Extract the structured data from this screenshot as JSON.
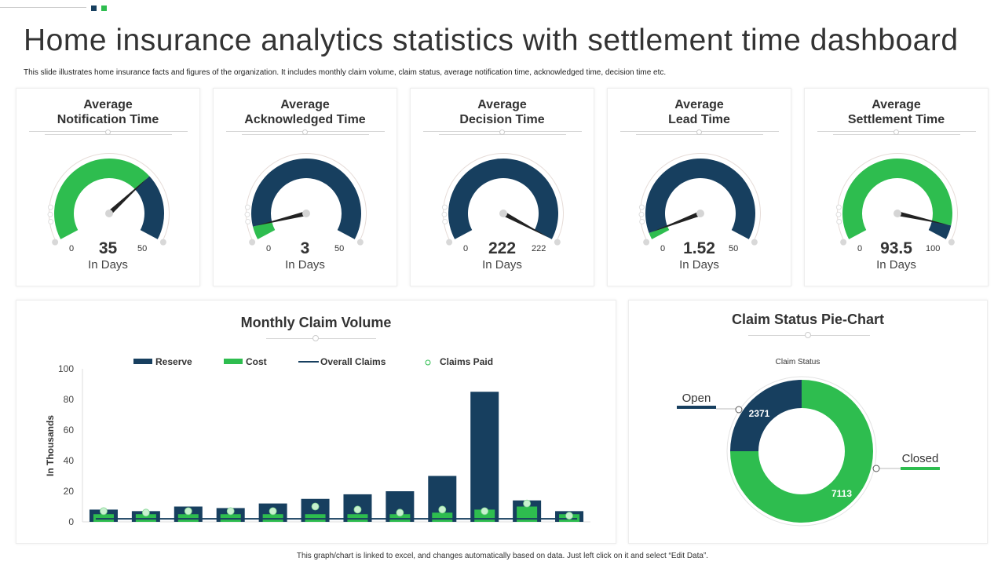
{
  "header": {
    "title": "Home insurance analytics statistics with settlement time dashboard",
    "subtitle": "This slide illustrates home insurance facts and figures of the organization. It includes monthly claim volume, claim status, average notification time, acknowledged time, decision time etc.",
    "accent_colors": [
      "#173f5f",
      "#2ebd4f"
    ]
  },
  "gauges": [
    {
      "title_line1": "Average",
      "title_line2": "Notification  Time",
      "min": "0",
      "max": "50",
      "value": "35",
      "unit": "In Days",
      "fraction": 0.7,
      "value_color": "#2ebd4f",
      "rest_color": "#173f5f"
    },
    {
      "title_line1": "Average",
      "title_line2": "Acknowledged Time",
      "min": "0",
      "max": "50",
      "value": "3",
      "unit": "In Days",
      "fraction": 0.06,
      "value_color": "#2ebd4f",
      "rest_color": "#173f5f"
    },
    {
      "title_line1": "Average",
      "title_line2": "Decision Time",
      "min": "0",
      "max": "222",
      "value": "222",
      "unit": "In Days",
      "fraction": 1.0,
      "value_color": "#173f5f",
      "rest_color": "#173f5f"
    },
    {
      "title_line1": "Average",
      "title_line2": "Lead Time",
      "min": "0",
      "max": "50",
      "value": "1.52",
      "unit": "In Days",
      "fraction": 0.03,
      "value_color": "#2ebd4f",
      "rest_color": "#173f5f"
    },
    {
      "title_line1": "Average",
      "title_line2": "Settlement Time",
      "min": "0",
      "max": "100",
      "value": "93.5",
      "unit": "In Days",
      "fraction": 0.935,
      "value_color": "#2ebd4f",
      "rest_color": "#173f5f"
    }
  ],
  "chart_data": [
    {
      "type": "bar",
      "title": "Monthly Claim Volume",
      "ylabel": "In Thousands",
      "xlabel": "",
      "ylim": [
        0,
        100
      ],
      "yticks": [
        "0",
        "20",
        "40",
        "60",
        "80",
        "100"
      ],
      "legend_position": "top",
      "grid": false,
      "series": [
        {
          "name": "Reserve",
          "kind": "bar",
          "color": "#173f5f",
          "values": [
            8,
            7,
            10,
            9,
            12,
            15,
            18,
            20,
            30,
            85,
            14,
            7
          ]
        },
        {
          "name": "Cost",
          "kind": "bar",
          "color": "#2ebd4f",
          "values": [
            5,
            5,
            5,
            5,
            5,
            5,
            5,
            5,
            6,
            8,
            10,
            5
          ]
        },
        {
          "name": "Overall Claims",
          "kind": "line",
          "color": "#173f5f",
          "values": [
            2,
            2,
            2,
            2,
            2,
            2,
            2,
            2,
            2,
            2,
            2,
            2
          ]
        },
        {
          "name": "Claims Paid",
          "kind": "marker",
          "color": "#c8f0cf",
          "values": [
            7,
            6,
            7,
            7,
            7,
            10,
            8,
            6,
            8,
            7,
            12,
            4
          ]
        }
      ]
    },
    {
      "type": "pie",
      "title": "Claim Status Pie-Chart",
      "subtitle": "Claim Status",
      "donut": true,
      "slices": [
        {
          "label": "Open",
          "value": 2371,
          "color": "#173f5f"
        },
        {
          "label": "Closed",
          "value": 7113,
          "color": "#2ebd4f"
        }
      ]
    }
  ],
  "footer": "This graph/chart is linked to excel, and changes automatically based on data. Just left click on it and select “Edit Data”."
}
